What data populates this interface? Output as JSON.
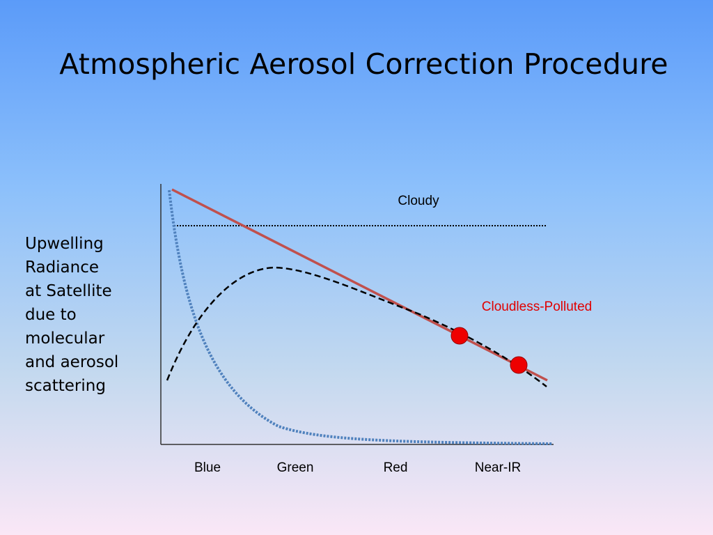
{
  "slide": {
    "title": "Atmospheric Aerosol Correction Procedure"
  },
  "diagram": {
    "y_label_lines": [
      "Upwelling",
      "Radiance",
      "at Satellite",
      "due to",
      "molecular",
      "and aerosol",
      "scattering"
    ],
    "x_categories": [
      "Blue",
      "Green",
      "Red",
      "Near-IR"
    ],
    "curve_labels": {
      "cloudy": "Cloudy",
      "cloudless_polluted": "Cloudless-Polluted"
    },
    "colors": {
      "polluted_line": "#c0504d",
      "cloudless_polluted_label": "#e00000",
      "molecular_curve": "#4f81bd",
      "aerosol_curve": "#000000",
      "cloudy_line": "#000000",
      "marker_fill": "#ee0000",
      "axis": "#333333"
    },
    "markers": [
      {
        "band": "Red-NearIR",
        "on_curve": "cloudless_polluted"
      },
      {
        "band": "Near-IR",
        "on_curve": "cloudless_polluted"
      }
    ]
  }
}
